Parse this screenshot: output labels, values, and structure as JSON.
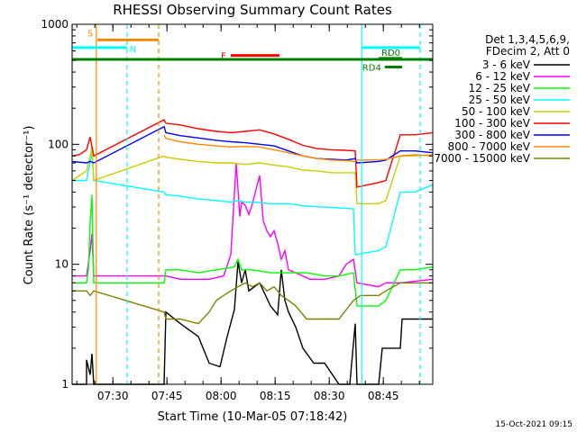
{
  "chart_data": {
    "type": "line",
    "title": "RHESSI Observing Summary Count Rates",
    "xlabel": "Start Time (10-Mar-05 07:18:42)",
    "ylabel": "Count Rate (s⁻¹ detector⁻¹)",
    "y_scale": "log",
    "ylim": [
      1,
      1000
    ],
    "xlim_minutes": [
      0,
      100
    ],
    "x_tick_labels": [
      {
        "label": "07:30",
        "minute": 11.3
      },
      {
        "label": "07:45",
        "minute": 26.3
      },
      {
        "label": "08:00",
        "minute": 41.3
      },
      {
        "label": "08:15",
        "minute": 56.3
      },
      {
        "label": "08:30",
        "minute": 71.3
      },
      {
        "label": "08:45",
        "minute": 86.3
      }
    ],
    "y_tick_labels": [
      {
        "label": "1",
        "value": 1
      },
      {
        "label": "10",
        "value": 10
      },
      {
        "label": "100",
        "value": 100
      },
      {
        "label": "1000",
        "value": 1000
      }
    ],
    "legend_header": [
      "Det 1,3,4,5,6,9,",
      "FDecim 2, Att 0"
    ],
    "legend_placement": "right",
    "series": [
      {
        "name": "3 - 6 keV",
        "color": "#000000",
        "points": [
          [
            0,
            1
          ],
          [
            4,
            1
          ],
          [
            4,
            1.6
          ],
          [
            5,
            1.2
          ],
          [
            5.5,
            1.8
          ],
          [
            6,
            1
          ],
          [
            25.5,
            1
          ],
          [
            26,
            4
          ],
          [
            30,
            3.2
          ],
          [
            35,
            2.5
          ],
          [
            38,
            1.5
          ],
          [
            41,
            1.4
          ],
          [
            43,
            2.5
          ],
          [
            45,
            4.2
          ],
          [
            46,
            10.5
          ],
          [
            47,
            7
          ],
          [
            48,
            9
          ],
          [
            49,
            6
          ],
          [
            52,
            7
          ],
          [
            55,
            4.5
          ],
          [
            57,
            3.8
          ],
          [
            58,
            9
          ],
          [
            59,
            5
          ],
          [
            60,
            4
          ],
          [
            62,
            3
          ],
          [
            64,
            2
          ],
          [
            67,
            1.5
          ],
          [
            70,
            1.5
          ],
          [
            74,
            1
          ],
          [
            77,
            1
          ],
          [
            78.5,
            3.2
          ],
          [
            79,
            1
          ],
          [
            85,
            1
          ],
          [
            86,
            2
          ],
          [
            91,
            2
          ],
          [
            91.5,
            3.5
          ],
          [
            95,
            3.5
          ],
          [
            100,
            3.5
          ]
        ]
      },
      {
        "name": "6 - 12 keV",
        "color": "#ff00ff",
        "points": [
          [
            0,
            8
          ],
          [
            4,
            8
          ],
          [
            5,
            13
          ],
          [
            5.5,
            18
          ],
          [
            6,
            8
          ],
          [
            25.5,
            8
          ],
          [
            26,
            8
          ],
          [
            30,
            7.5
          ],
          [
            38,
            7.5
          ],
          [
            42,
            8
          ],
          [
            44,
            12
          ],
          [
            45.5,
            70
          ],
          [
            46.5,
            25
          ],
          [
            47,
            33
          ],
          [
            48,
            31
          ],
          [
            49,
            26
          ],
          [
            50,
            32
          ],
          [
            52,
            55
          ],
          [
            53,
            23
          ],
          [
            54,
            19
          ],
          [
            55,
            17
          ],
          [
            56,
            19
          ],
          [
            57,
            15
          ],
          [
            58,
            11
          ],
          [
            59,
            13
          ],
          [
            60,
            9
          ],
          [
            62,
            8.5
          ],
          [
            66,
            7.5
          ],
          [
            70,
            7.5
          ],
          [
            74,
            8
          ],
          [
            76,
            10
          ],
          [
            78,
            11
          ],
          [
            79,
            7
          ],
          [
            85,
            6.5
          ],
          [
            87,
            7
          ],
          [
            91,
            7
          ],
          [
            100,
            7.5
          ]
        ]
      },
      {
        "name": "12 - 25 keV",
        "color": "#00ff00",
        "points": [
          [
            0,
            7
          ],
          [
            4,
            7
          ],
          [
            4.5,
            9
          ],
          [
            5,
            22
          ],
          [
            5.5,
            38
          ],
          [
            6,
            7
          ],
          [
            25.5,
            7
          ],
          [
            26,
            9
          ],
          [
            30,
            9
          ],
          [
            35,
            8.5
          ],
          [
            40,
            9
          ],
          [
            45,
            9.5
          ],
          [
            46,
            11
          ],
          [
            47,
            9
          ],
          [
            50,
            9
          ],
          [
            55,
            8.5
          ],
          [
            60,
            8.5
          ],
          [
            65,
            8.5
          ],
          [
            70,
            8
          ],
          [
            74,
            8
          ],
          [
            78,
            8.5
          ],
          [
            79,
            4.5
          ],
          [
            85,
            4.5
          ],
          [
            87,
            5
          ],
          [
            91,
            9
          ],
          [
            95,
            9
          ],
          [
            100,
            9.5
          ]
        ]
      },
      {
        "name": "25 - 50 keV",
        "color": "#00ffff",
        "points": [
          [
            0,
            50
          ],
          [
            4,
            50
          ],
          [
            4.5,
            60
          ],
          [
            5.5,
            85
          ],
          [
            6,
            50
          ],
          [
            25.5,
            40
          ],
          [
            26,
            38
          ],
          [
            30,
            37
          ],
          [
            35,
            35
          ],
          [
            40,
            34
          ],
          [
            44,
            33
          ],
          [
            46,
            34
          ],
          [
            48,
            33
          ],
          [
            50,
            33
          ],
          [
            55,
            32
          ],
          [
            60,
            32
          ],
          [
            65,
            30.5
          ],
          [
            70,
            30
          ],
          [
            74,
            29.5
          ],
          [
            78,
            29
          ],
          [
            78.5,
            12
          ],
          [
            85,
            13
          ],
          [
            87,
            14
          ],
          [
            91,
            40
          ],
          [
            95,
            40
          ],
          [
            100,
            46
          ]
        ]
      },
      {
        "name": "50 - 100 keV",
        "color": "#cccc00",
        "points": [
          [
            0,
            50
          ],
          [
            4,
            60
          ],
          [
            5,
            80
          ],
          [
            5.5,
            95
          ],
          [
            6,
            50
          ],
          [
            25.5,
            80
          ],
          [
            26,
            78
          ],
          [
            30,
            75
          ],
          [
            35,
            72
          ],
          [
            40,
            70
          ],
          [
            44,
            70
          ],
          [
            48,
            68
          ],
          [
            52,
            70
          ],
          [
            56,
            67
          ],
          [
            60,
            65
          ],
          [
            64,
            61
          ],
          [
            68,
            60
          ],
          [
            72,
            58
          ],
          [
            76,
            58
          ],
          [
            78.5,
            58
          ],
          [
            79,
            32
          ],
          [
            85,
            32
          ],
          [
            87,
            34
          ],
          [
            91,
            80
          ],
          [
            95,
            80
          ],
          [
            100,
            82
          ]
        ]
      },
      {
        "name": "100 - 300 keV",
        "color": "#ff0000",
        "points": [
          [
            0,
            80
          ],
          [
            2,
            82
          ],
          [
            4,
            90
          ],
          [
            5,
            115
          ],
          [
            6,
            80
          ],
          [
            25.5,
            160
          ],
          [
            26,
            150
          ],
          [
            30,
            145
          ],
          [
            35,
            135
          ],
          [
            40,
            128
          ],
          [
            44,
            125
          ],
          [
            48,
            128
          ],
          [
            52,
            132
          ],
          [
            56,
            122
          ],
          [
            60,
            110
          ],
          [
            64,
            98
          ],
          [
            68,
            92
          ],
          [
            72,
            90
          ],
          [
            76,
            89
          ],
          [
            78.5,
            88
          ],
          [
            79,
            44
          ],
          [
            85,
            48
          ],
          [
            87,
            50
          ],
          [
            91,
            120
          ],
          [
            95,
            120
          ],
          [
            100,
            125
          ]
        ]
      },
      {
        "name": "300 - 800 keV",
        "color": "#0000ff",
        "points": [
          [
            0,
            72
          ],
          [
            4,
            70
          ],
          [
            5,
            72
          ],
          [
            6,
            70
          ],
          [
            25.5,
            140
          ],
          [
            26,
            125
          ],
          [
            30,
            118
          ],
          [
            35,
            113
          ],
          [
            40,
            108
          ],
          [
            44,
            105
          ],
          [
            48,
            103
          ],
          [
            52,
            100
          ],
          [
            56,
            97
          ],
          [
            60,
            88
          ],
          [
            64,
            80
          ],
          [
            68,
            76
          ],
          [
            72,
            75
          ],
          [
            76,
            74
          ],
          [
            78.5,
            76
          ],
          [
            79,
            70
          ],
          [
            85,
            72
          ],
          [
            87,
            74
          ],
          [
            91,
            88
          ],
          [
            95,
            88
          ],
          [
            100,
            85
          ]
        ]
      },
      {
        "name": "800 - 7000 keV",
        "color": "#ff8800",
        "points": [
          [
            25.5,
            120
          ],
          [
            26,
            112
          ],
          [
            30,
            105
          ],
          [
            35,
            100
          ],
          [
            40,
            97
          ],
          [
            44,
            95
          ],
          [
            48,
            96
          ],
          [
            52,
            95
          ],
          [
            56,
            90
          ],
          [
            60,
            85
          ],
          [
            64,
            80
          ],
          [
            68,
            76
          ],
          [
            72,
            74
          ],
          [
            76,
            73
          ],
          [
            78.5,
            72
          ],
          [
            79,
            74
          ],
          [
            85,
            74
          ],
          [
            87,
            75
          ],
          [
            91,
            80
          ],
          [
            95,
            82
          ],
          [
            100,
            80
          ]
        ]
      },
      {
        "name": "7000 - 15000 keV",
        "color": "#808000",
        "points": [
          [
            0,
            6
          ],
          [
            4,
            6
          ],
          [
            5,
            5.5
          ],
          [
            6,
            6
          ],
          [
            25.5,
            4
          ],
          [
            26,
            3.5
          ],
          [
            30,
            3.5
          ],
          [
            35,
            3.2
          ],
          [
            38,
            4
          ],
          [
            40,
            5
          ],
          [
            42,
            5.5
          ],
          [
            44,
            6
          ],
          [
            46,
            6.5
          ],
          [
            48,
            7
          ],
          [
            50,
            6.5
          ],
          [
            52,
            7
          ],
          [
            54,
            6
          ],
          [
            56,
            6.5
          ],
          [
            58,
            5.5
          ],
          [
            60,
            5
          ],
          [
            62,
            4.5
          ],
          [
            65,
            3.5
          ],
          [
            70,
            3.5
          ],
          [
            74,
            3.5
          ],
          [
            78,
            5
          ],
          [
            80,
            5.5
          ],
          [
            85,
            5.5
          ],
          [
            87,
            6
          ],
          [
            91,
            7
          ],
          [
            95,
            7
          ],
          [
            100,
            7
          ]
        ]
      }
    ],
    "vertical_lines": [
      {
        "minute": 0,
        "color": "#00ffff",
        "style": "solid"
      },
      {
        "minute": 6.7,
        "color": "#ff8800",
        "style": "solid"
      },
      {
        "minute": 15.2,
        "color": "#00ffff",
        "style": "dashed"
      },
      {
        "minute": 24,
        "color": "#ff8800",
        "style": "dashed"
      },
      {
        "minute": 80.3,
        "color": "#00ffff",
        "style": "solid"
      },
      {
        "minute": 96.5,
        "color": "#00ffff",
        "style": "dashed"
      }
    ],
    "flag_bars": [
      {
        "label": "S",
        "color": "#ff8800",
        "start": 7,
        "end": 24,
        "value": 740
      },
      {
        "label": "N",
        "color": "#00ffff",
        "start": 0,
        "end": 15.2,
        "value": 640
      },
      {
        "label": "",
        "color": "#00ffff",
        "start": 80.3,
        "end": 96.5,
        "value": 640
      },
      {
        "label": "F",
        "color": "#ff0000",
        "start": 44,
        "end": 57.5,
        "value": 550
      },
      {
        "label": "",
        "color": "#008000",
        "start": 0,
        "end": 100,
        "value": 510
      },
      {
        "label": "RD0",
        "color": "#008000",
        "start": 85,
        "end": 91.5,
        "value": 520
      },
      {
        "label": "RD4",
        "color": "#008000",
        "start": 86.7,
        "end": 91.5,
        "value": 440
      }
    ],
    "footer_date": "15-Oct-2021 09:15"
  }
}
